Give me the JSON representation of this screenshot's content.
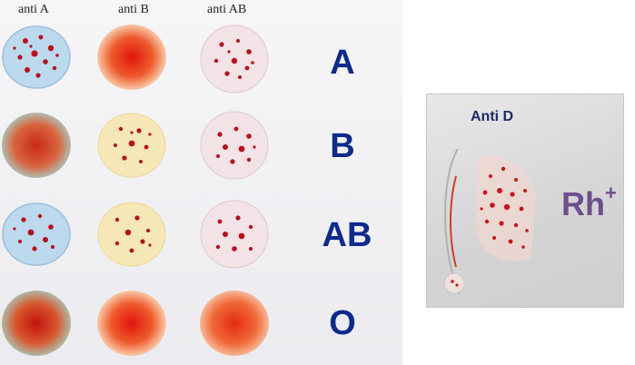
{
  "columns": [
    "anti A",
    "anti B",
    "anti AB"
  ],
  "rows": [
    {
      "label": "A",
      "results": [
        "agglutinated",
        "negative",
        "agglutinated"
      ]
    },
    {
      "label": "B",
      "results": [
        "negative",
        "agglutinated",
        "agglutinated"
      ]
    },
    {
      "label": "AB",
      "results": [
        "agglutinated",
        "agglutinated",
        "agglutinated"
      ]
    },
    {
      "label": "O",
      "results": [
        "negative",
        "negative",
        "negative"
      ]
    }
  ],
  "rh_test": {
    "title": "Anti D",
    "result_text": "Rh",
    "result_sign": "+"
  },
  "colors": {
    "anti_a_reagent": "#bcd9ee",
    "anti_b_reagent": "#f6e7b6",
    "anti_ab_reagent": "#f3e3e6",
    "agglutinate": "#b4121f",
    "negative_blood": "#d93a20",
    "row_label": "#0c2a8c",
    "rh_label": "#6e4e8c"
  }
}
